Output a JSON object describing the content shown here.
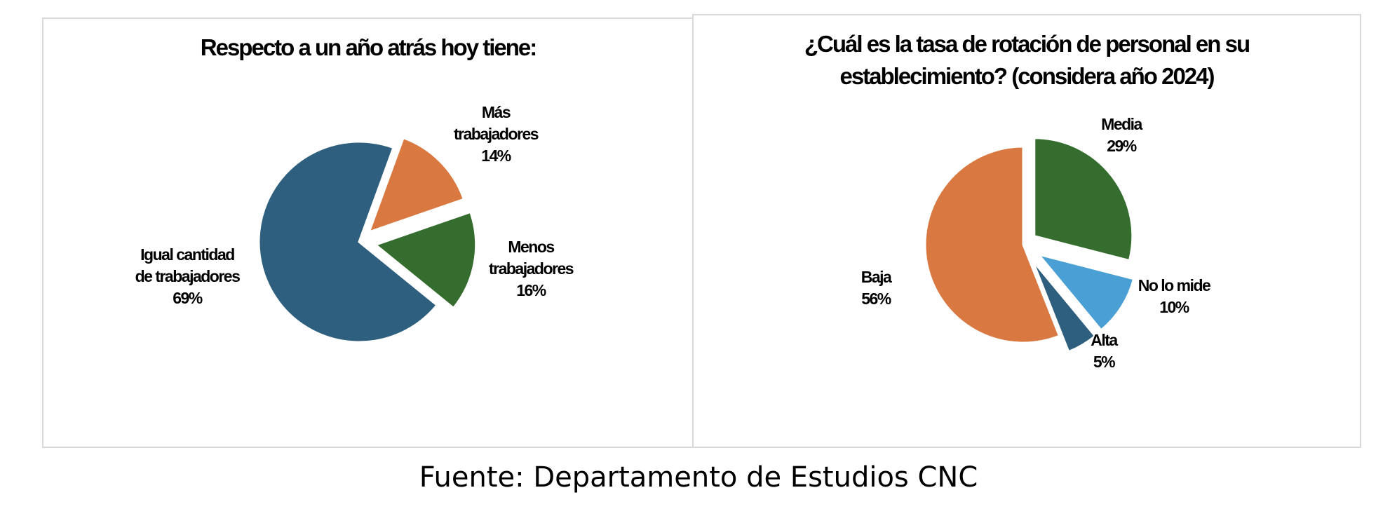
{
  "chart_data": [
    {
      "type": "pie",
      "title": "Respecto a un año atrás hoy tiene:",
      "slices": [
        {
          "label_lines": [
            "Más",
            "trabajadores"
          ],
          "pct": "14%",
          "value": 14,
          "color": "#d97941"
        },
        {
          "label_lines": [
            "Menos",
            "trabajadores"
          ],
          "pct": "16%",
          "value": 16,
          "color": "#346d2d"
        },
        {
          "label_lines": [
            "Igual cantidad",
            "de trabajadores"
          ],
          "pct": "69%",
          "value": 69,
          "color": "#2e5f7e"
        }
      ]
    },
    {
      "type": "pie",
      "title": "¿Cuál es la tasa de rotación de personal en su establecimiento? (considera año 2024)",
      "slices": [
        {
          "label_lines": [
            "Media"
          ],
          "pct": "29%",
          "value": 29,
          "color": "#346d2d"
        },
        {
          "label_lines": [
            "No lo mide"
          ],
          "pct": "10%",
          "value": 10,
          "color": "#4a9fd4"
        },
        {
          "label_lines": [
            "Alta"
          ],
          "pct": "5%",
          "value": 5,
          "color": "#2e5f7e"
        },
        {
          "label_lines": [
            "Baja"
          ],
          "pct": "56%",
          "value": 56,
          "color": "#d97941"
        }
      ]
    }
  ],
  "footer": {
    "source": "Fuente: Departamento de Estudios CNC"
  }
}
